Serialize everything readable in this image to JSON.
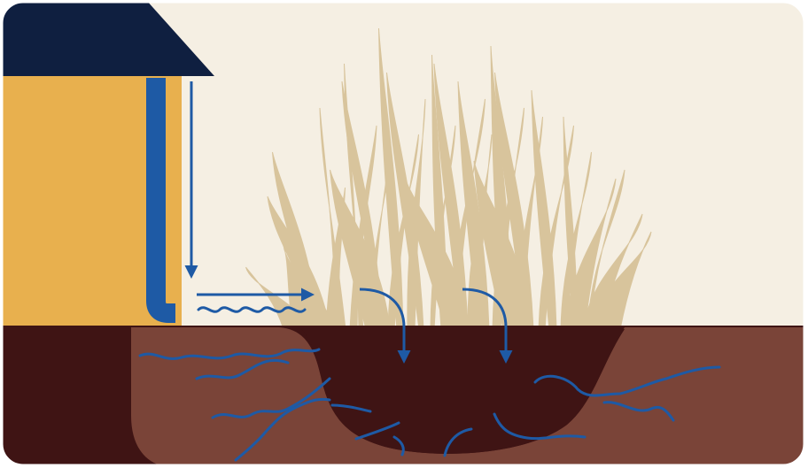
{
  "diagram": {
    "subject": "rain garden",
    "colors": {
      "sky": "#f5efe3",
      "roof": "#0f1f40",
      "house_wall": "#e8b04e",
      "downspout": "#1e5aa5",
      "water": "#1e5aa5",
      "grass": "#d8c49c",
      "grass_highlight": "#ece0c4",
      "soil_dark": "#3f1414",
      "soil_medium": "#7a4438"
    },
    "icons": {
      "roof": "roof-icon",
      "downspout": "downspout-icon",
      "grass": "ornamental-grass-icon",
      "flow_arrow": "arrow-icon",
      "infiltration": "water-squiggle-icon"
    }
  }
}
